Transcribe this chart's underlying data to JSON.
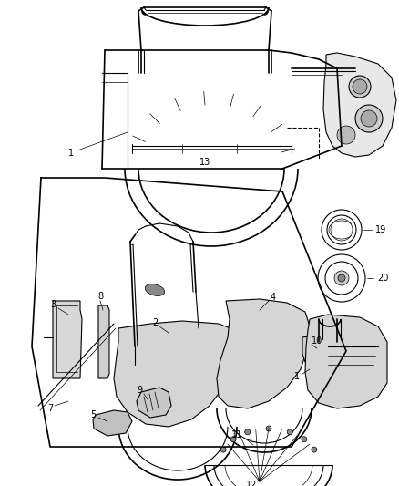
{
  "bg_color": "#ffffff",
  "fig_width": 4.38,
  "fig_height": 5.33,
  "dpi": 100,
  "line_color": "#000000",
  "label_fontsize": 7.0,
  "gray": "#555555",
  "lightgray": "#aaaaaa"
}
